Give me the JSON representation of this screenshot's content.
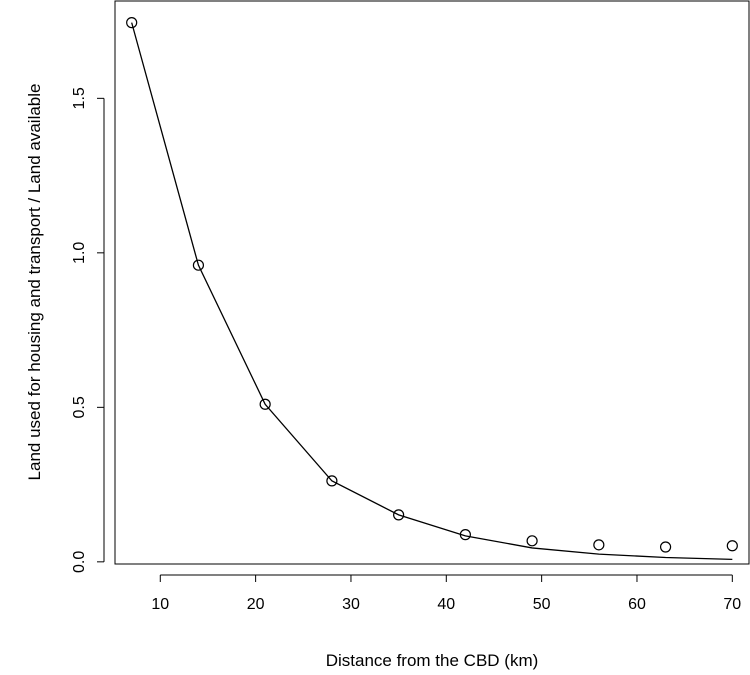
{
  "chart_data": {
    "type": "scatter",
    "title": "",
    "xlabel": "Distance from the CBD (km)",
    "ylabel": "Land used for housing and transport / Land available",
    "xlim": [
      5.25,
      71.75
    ],
    "ylim": [
      -0.007,
      1.815
    ],
    "x_ticks": [
      10,
      20,
      30,
      40,
      50,
      60,
      70
    ],
    "x_tick_labels": [
      "10",
      "20",
      "30",
      "40",
      "50",
      "60",
      "70"
    ],
    "y_ticks": [
      0.0,
      0.5,
      1.0,
      1.5
    ],
    "y_tick_labels": [
      "0.0",
      "0.5",
      "1.0",
      "1.5"
    ],
    "grid": false,
    "legend": "none",
    "series": [
      {
        "kind": "points",
        "marker": "open-circle",
        "x": [
          7,
          14,
          21,
          28,
          35,
          42,
          49,
          56,
          63,
          70
        ],
        "y": [
          1.745,
          0.96,
          0.51,
          0.262,
          0.152,
          0.088,
          0.068,
          0.055,
          0.048,
          0.052
        ]
      },
      {
        "kind": "line",
        "x": [
          7,
          14,
          21,
          28,
          35,
          42,
          49,
          56,
          63,
          70
        ],
        "y": [
          1.745,
          0.96,
          0.51,
          0.262,
          0.152,
          0.084,
          0.045,
          0.025,
          0.014,
          0.008
        ]
      }
    ]
  }
}
